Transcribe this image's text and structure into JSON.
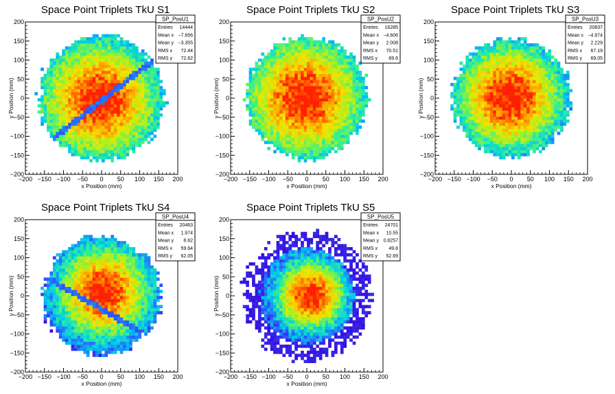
{
  "chart_data": [
    {
      "type": "heatmap",
      "title": "Space Point Triplets TkU S1",
      "xlabel": "x Position (mm)",
      "ylabel": "y Position (mm)",
      "xlim": [
        -200,
        200
      ],
      "ylim": [
        -200,
        200
      ],
      "ticks": [
        "−200",
        "−150",
        "−100",
        "−50",
        "0",
        "50",
        "100",
        "150",
        "200"
      ],
      "stats": {
        "name": "SP_PosU1",
        "rows": [
          {
            "label": "Entries",
            "value": "14444"
          },
          {
            "label": "Mean x",
            "value": "−7.656"
          },
          {
            "label": "Mean y",
            "value": "−3.355"
          },
          {
            "label": "RMS x",
            "value": "72.44"
          },
          {
            "label": "RMS y",
            "value": "72.62"
          }
        ]
      },
      "radius": 165,
      "density": {
        "center": [
          -5,
          -5
        ],
        "spread": 110
      },
      "dead_channel": {
        "angle_deg": 38,
        "offset": -5,
        "width": 7
      },
      "color_scale": [
        "#3a00d8",
        "#2f5cff",
        "#00c6f0",
        "#2cf09a",
        "#a8f020",
        "#f4e400",
        "#ff9a00",
        "#ff2000"
      ]
    },
    {
      "type": "heatmap",
      "title": "Space Point Triplets TkU S2",
      "xlabel": "x Position (mm)",
      "ylabel": "y Position (mm)",
      "xlim": [
        -200,
        200
      ],
      "ylim": [
        -200,
        200
      ],
      "ticks": [
        "−200",
        "−150",
        "−100",
        "−50",
        "0",
        "50",
        "100",
        "150",
        "200"
      ],
      "stats": {
        "name": "SP_PosU2",
        "rows": [
          {
            "label": "Entries",
            "value": "16285"
          },
          {
            "label": "Mean x",
            "value": "−4.606"
          },
          {
            "label": "Mean y",
            "value": "2.008"
          },
          {
            "label": "RMS x",
            "value": "70.51"
          },
          {
            "label": "RMS y",
            "value": "69.6"
          }
        ]
      },
      "radius": 160,
      "density": {
        "center": [
          -5,
          2
        ],
        "spread": 110
      },
      "color_scale": [
        "#3a00d8",
        "#2f5cff",
        "#00c6f0",
        "#2cf09a",
        "#a8f020",
        "#f4e400",
        "#ff9a00",
        "#ff2000"
      ]
    },
    {
      "type": "heatmap",
      "title": "Space Point Triplets TkU S3",
      "xlabel": "x Position (mm)",
      "ylabel": "y Position (mm)",
      "xlim": [
        -200,
        200
      ],
      "ylim": [
        -200,
        200
      ],
      "ticks": [
        "−200",
        "−150",
        "−100",
        "−50",
        "0",
        "50",
        "100",
        "150",
        "200"
      ],
      "stats": {
        "name": "SP_PosU3",
        "rows": [
          {
            "label": "Entries",
            "value": "20837"
          },
          {
            "label": "Mean x",
            "value": "−4.974"
          },
          {
            "label": "Mean y",
            "value": "2.229"
          },
          {
            "label": "RMS x",
            "value": "67.19"
          },
          {
            "label": "RMS y",
            "value": "69.05"
          }
        ]
      },
      "radius": 155,
      "density": {
        "center": [
          -5,
          2
        ],
        "spread": 100
      },
      "color_scale": [
        "#3a00d8",
        "#2f5cff",
        "#00c6f0",
        "#2cf09a",
        "#a8f020",
        "#f4e400",
        "#ff9a00",
        "#ff2000"
      ]
    },
    {
      "type": "heatmap",
      "title": "Space Point Triplets TkU S4",
      "xlabel": "x Position (mm)",
      "ylabel": "y Position (mm)",
      "xlim": [
        -200,
        200
      ],
      "ylim": [
        -200,
        200
      ],
      "ticks": [
        "−200",
        "−150",
        "−100",
        "−50",
        "0",
        "50",
        "100",
        "150",
        "200"
      ],
      "stats": {
        "name": "SP_PosU4",
        "rows": [
          {
            "label": "Entries",
            "value": "20463"
          },
          {
            "label": "Mean x",
            "value": "1.974"
          },
          {
            "label": "Mean y",
            "value": "8.62"
          },
          {
            "label": "RMS x",
            "value": "59.64"
          },
          {
            "label": "RMS y",
            "value": "62.05"
          }
        ]
      },
      "radius": 155,
      "density": {
        "center": [
          5,
          10
        ],
        "spread": 85
      },
      "dead_channel": {
        "angle_deg": -30,
        "offset": -30,
        "width": 7
      },
      "color_scale": [
        "#3a00d8",
        "#2f5cff",
        "#00c6f0",
        "#2cf09a",
        "#a8f020",
        "#f4e400",
        "#ff9a00",
        "#ff2000"
      ]
    },
    {
      "type": "heatmap",
      "title": "Space Point Triplets TkU S5",
      "xlabel": "x Position (mm)",
      "ylabel": "y Position (mm)",
      "xlim": [
        -200,
        200
      ],
      "ylim": [
        -200,
        200
      ],
      "ticks": [
        "−200",
        "−150",
        "−100",
        "−50",
        "0",
        "50",
        "100",
        "150",
        "200"
      ],
      "stats": {
        "name": "SP_PosU5",
        "rows": [
          {
            "label": "Entries",
            "value": "24701"
          },
          {
            "label": "Mean x",
            "value": "10.55"
          },
          {
            "label": "Mean y",
            "value": "0.8257"
          },
          {
            "label": "RMS x",
            "value": "49.8"
          },
          {
            "label": "RMS y",
            "value": "52.69"
          }
        ]
      },
      "radius": 170,
      "density": {
        "center": [
          10,
          2
        ],
        "spread": 65
      },
      "color_scale": [
        "#3a00d8",
        "#2f5cff",
        "#00c6f0",
        "#2cf09a",
        "#a8f020",
        "#f4e400",
        "#ff9a00",
        "#ff2000"
      ]
    }
  ]
}
